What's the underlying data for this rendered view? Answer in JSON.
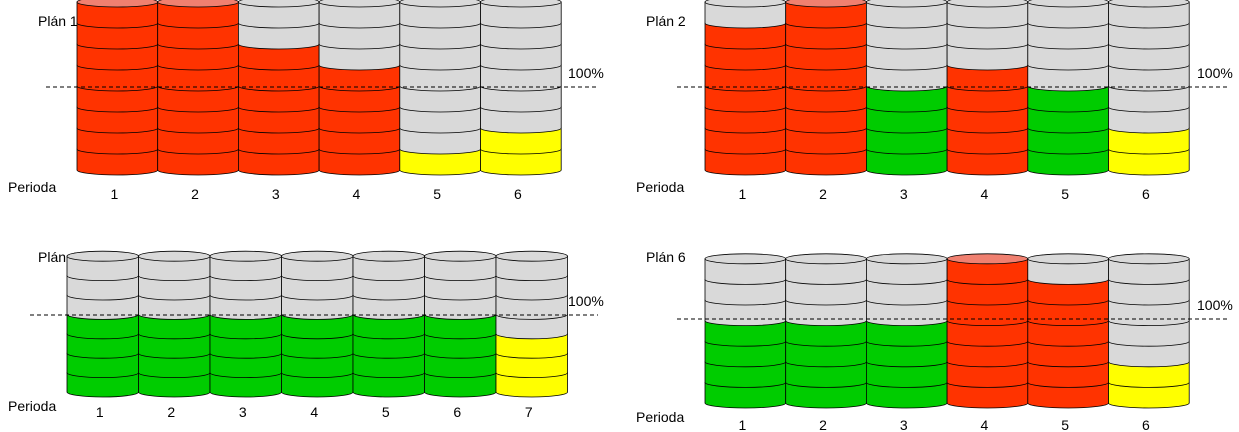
{
  "palette": {
    "red": "#ff3300",
    "red_top": "#f08070",
    "grey": "#d9d9d9",
    "green": "#00cc00",
    "yellow": "#ffff00"
  },
  "line_label": "100%",
  "period_label": "Perioda",
  "plans": [
    {
      "title": "Plán 1",
      "periods": [
        {
          "label": "1",
          "units": [
            "red",
            "red",
            "red",
            "red",
            "red",
            "red",
            "red",
            "red"
          ]
        },
        {
          "label": "2",
          "units": [
            "red",
            "red",
            "red",
            "red",
            "red",
            "red",
            "red",
            "red"
          ]
        },
        {
          "label": "3",
          "units": [
            "red",
            "red",
            "red",
            "red",
            "red",
            "red",
            "grey",
            "grey"
          ]
        },
        {
          "label": "4",
          "units": [
            "red",
            "red",
            "red",
            "red",
            "red",
            "grey",
            "grey",
            "grey"
          ]
        },
        {
          "label": "5",
          "units": [
            "yellow",
            "grey",
            "grey",
            "grey",
            "grey",
            "grey",
            "grey",
            "grey"
          ]
        },
        {
          "label": "6",
          "units": [
            "yellow",
            "yellow",
            "grey",
            "grey",
            "grey",
            "grey",
            "grey",
            "grey"
          ]
        }
      ]
    },
    {
      "title": "Plán 2",
      "periods": [
        {
          "label": "1",
          "units": [
            "red",
            "red",
            "red",
            "red",
            "red",
            "red",
            "red",
            "grey"
          ]
        },
        {
          "label": "2",
          "units": [
            "red",
            "red",
            "red",
            "red",
            "red",
            "red",
            "red",
            "red"
          ]
        },
        {
          "label": "3",
          "units": [
            "green",
            "green",
            "green",
            "green",
            "grey",
            "grey",
            "grey",
            "grey"
          ]
        },
        {
          "label": "4",
          "units": [
            "red",
            "red",
            "red",
            "red",
            "red",
            "grey",
            "grey",
            "grey"
          ]
        },
        {
          "label": "5",
          "units": [
            "green",
            "green",
            "green",
            "green",
            "grey",
            "grey",
            "grey",
            "grey"
          ]
        },
        {
          "label": "6",
          "units": [
            "yellow",
            "yellow",
            "grey",
            "grey",
            "grey",
            "grey",
            "grey",
            "grey"
          ]
        }
      ]
    },
    {
      "title": "Plán 4",
      "periods": [
        {
          "label": "1",
          "units": [
            "green",
            "green",
            "green",
            "green",
            "grey",
            "grey",
            "grey"
          ]
        },
        {
          "label": "2",
          "units": [
            "green",
            "green",
            "green",
            "green",
            "grey",
            "grey",
            "grey"
          ]
        },
        {
          "label": "3",
          "units": [
            "green",
            "green",
            "green",
            "green",
            "grey",
            "grey",
            "grey"
          ]
        },
        {
          "label": "4",
          "units": [
            "green",
            "green",
            "green",
            "green",
            "grey",
            "grey",
            "grey"
          ]
        },
        {
          "label": "5",
          "units": [
            "green",
            "green",
            "green",
            "green",
            "grey",
            "grey",
            "grey"
          ]
        },
        {
          "label": "6",
          "units": [
            "green",
            "green",
            "green",
            "green",
            "grey",
            "grey",
            "grey"
          ]
        },
        {
          "label": "7",
          "units": [
            "yellow",
            "yellow",
            "yellow",
            "grey",
            "grey",
            "grey",
            "grey"
          ]
        }
      ]
    },
    {
      "title": "Plán 6",
      "periods": [
        {
          "label": "1",
          "units": [
            "green",
            "green",
            "green",
            "green",
            "grey",
            "grey",
            "grey"
          ]
        },
        {
          "label": "2",
          "units": [
            "green",
            "green",
            "green",
            "green",
            "grey",
            "grey",
            "grey"
          ]
        },
        {
          "label": "3",
          "units": [
            "green",
            "green",
            "green",
            "green",
            "grey",
            "grey",
            "grey"
          ]
        },
        {
          "label": "4",
          "units": [
            "red",
            "red",
            "red",
            "red",
            "red",
            "red",
            "red"
          ]
        },
        {
          "label": "5",
          "units": [
            "red",
            "red",
            "red",
            "red",
            "red",
            "red",
            "grey"
          ]
        },
        {
          "label": "6",
          "units": [
            "yellow",
            "yellow",
            "grey",
            "grey",
            "grey",
            "grey",
            "grey"
          ]
        }
      ]
    }
  ]
}
